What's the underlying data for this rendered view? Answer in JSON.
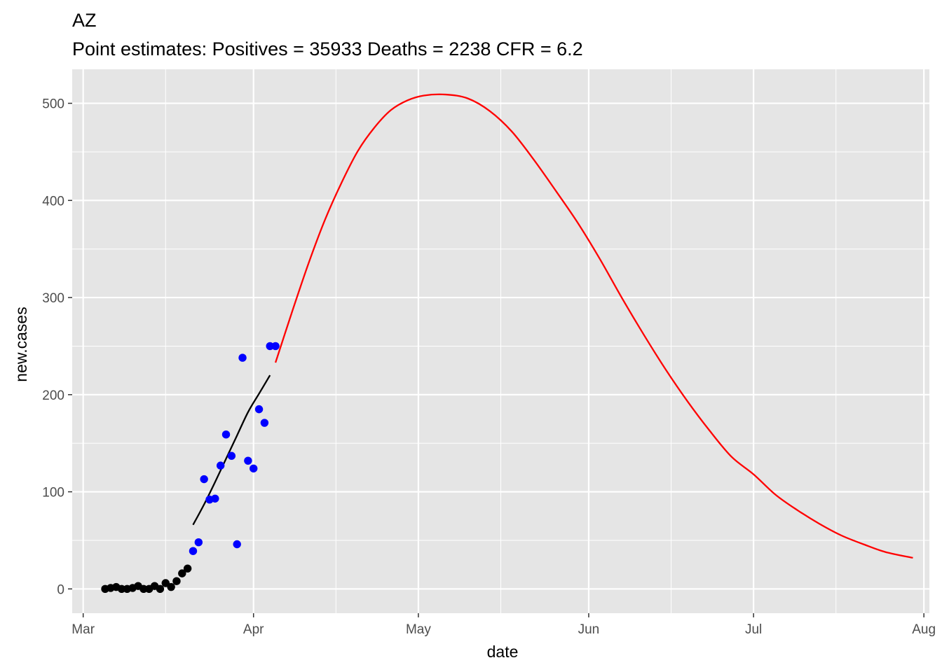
{
  "chart_data": {
    "type": "scatter",
    "title": "AZ",
    "subtitle": "Point estimates: Positives = 35933 Deaths = 2238 CFR = 6.2",
    "xlabel": "date",
    "ylabel": "new.cases",
    "x_type": "date",
    "xlim": [
      "2020-02-28",
      "2020-08-02"
    ],
    "ylim": [
      -25,
      535
    ],
    "x_ticks": [
      {
        "date": "2020-03-01",
        "label": "Mar"
      },
      {
        "date": "2020-04-01",
        "label": "Apr"
      },
      {
        "date": "2020-05-01",
        "label": "May"
      },
      {
        "date": "2020-06-01",
        "label": "Jun"
      },
      {
        "date": "2020-07-01",
        "label": "Jul"
      },
      {
        "date": "2020-08-01",
        "label": "Aug"
      }
    ],
    "x_minor_ticks": [
      "2020-03-16",
      "2020-04-16",
      "2020-05-16",
      "2020-06-16",
      "2020-07-16"
    ],
    "y_ticks": [
      0,
      100,
      200,
      300,
      400,
      500
    ],
    "y_minor_ticks": [
      50,
      150,
      250,
      350,
      450
    ],
    "grid": true,
    "colors": {
      "panel": "#e5e5e5",
      "grid": "#ffffff",
      "early_points": "#000000",
      "recent_points": "#0000ff",
      "fit_curve": "#000000",
      "projection_curve": "#ff0000"
    },
    "series": [
      {
        "kind": "points",
        "color_key": "early_points",
        "points": [
          [
            "2020-03-05",
            0
          ],
          [
            "2020-03-06",
            1
          ],
          [
            "2020-03-07",
            2
          ],
          [
            "2020-03-08",
            0
          ],
          [
            "2020-03-09",
            0
          ],
          [
            "2020-03-10",
            1
          ],
          [
            "2020-03-11",
            3
          ],
          [
            "2020-03-12",
            0
          ],
          [
            "2020-03-13",
            0
          ],
          [
            "2020-03-14",
            3
          ],
          [
            "2020-03-15",
            0
          ],
          [
            "2020-03-16",
            6
          ],
          [
            "2020-03-17",
            2
          ],
          [
            "2020-03-18",
            8
          ],
          [
            "2020-03-19",
            16
          ],
          [
            "2020-03-20",
            21
          ]
        ]
      },
      {
        "kind": "points",
        "color_key": "recent_points",
        "points": [
          [
            "2020-03-21",
            39
          ],
          [
            "2020-03-22",
            48
          ],
          [
            "2020-03-23",
            113
          ],
          [
            "2020-03-24",
            92
          ],
          [
            "2020-03-25",
            93
          ],
          [
            "2020-03-26",
            127
          ],
          [
            "2020-03-27",
            159
          ],
          [
            "2020-03-28",
            137
          ],
          [
            "2020-03-29",
            46
          ],
          [
            "2020-03-30",
            238
          ],
          [
            "2020-03-31",
            132
          ],
          [
            "2020-04-01",
            124
          ],
          [
            "2020-04-02",
            185
          ],
          [
            "2020-04-03",
            171
          ],
          [
            "2020-04-04",
            250
          ],
          [
            "2020-04-05",
            250
          ]
        ]
      },
      {
        "kind": "line",
        "color_key": "fit_curve",
        "points": [
          [
            "2020-03-21",
            66
          ],
          [
            "2020-03-23",
            87
          ],
          [
            "2020-03-25",
            110
          ],
          [
            "2020-03-27",
            134
          ],
          [
            "2020-03-29",
            158
          ],
          [
            "2020-03-31",
            182
          ],
          [
            "2020-04-02",
            201
          ],
          [
            "2020-04-04",
            220
          ]
        ]
      },
      {
        "kind": "line",
        "color_key": "projection_curve",
        "points": [
          [
            "2020-04-05",
            233
          ],
          [
            "2020-04-08",
            285
          ],
          [
            "2020-04-11",
            335
          ],
          [
            "2020-04-14",
            380
          ],
          [
            "2020-04-17",
            418
          ],
          [
            "2020-04-20",
            451
          ],
          [
            "2020-04-23",
            475
          ],
          [
            "2020-04-26",
            493
          ],
          [
            "2020-04-29",
            503
          ],
          [
            "2020-05-02",
            508
          ],
          [
            "2020-05-06",
            509
          ],
          [
            "2020-05-10",
            505
          ],
          [
            "2020-05-14",
            492
          ],
          [
            "2020-05-18",
            471
          ],
          [
            "2020-05-22",
            442
          ],
          [
            "2020-05-26",
            410
          ],
          [
            "2020-05-30",
            377
          ],
          [
            "2020-06-03",
            340
          ],
          [
            "2020-06-07",
            300
          ],
          [
            "2020-06-11",
            262
          ],
          [
            "2020-06-15",
            226
          ],
          [
            "2020-06-19",
            193
          ],
          [
            "2020-06-23",
            163
          ],
          [
            "2020-06-27",
            136
          ],
          [
            "2020-07-01",
            118
          ],
          [
            "2020-07-05",
            97
          ],
          [
            "2020-07-09",
            81
          ],
          [
            "2020-07-13",
            67
          ],
          [
            "2020-07-17",
            55
          ],
          [
            "2020-07-21",
            46
          ],
          [
            "2020-07-25",
            38
          ],
          [
            "2020-07-30",
            32
          ]
        ]
      }
    ]
  }
}
